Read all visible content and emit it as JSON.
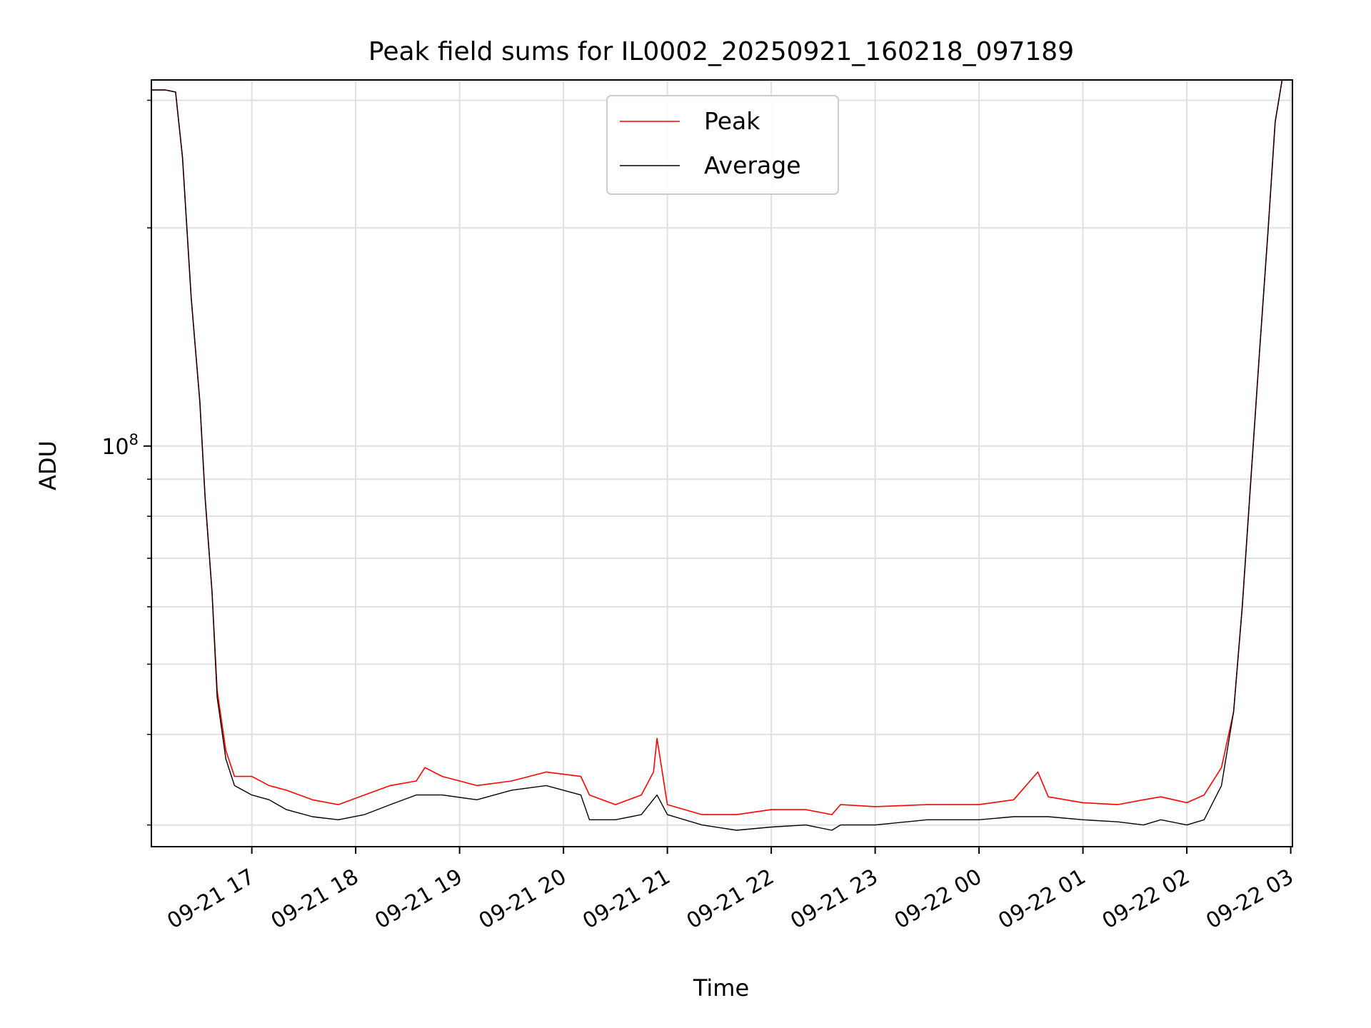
{
  "chart_data": {
    "type": "line",
    "title": "Peak field sums for IL0002_20250921_160218_097189",
    "xlabel": "Time",
    "ylabel": "ADU",
    "yscale": "log",
    "grid": true,
    "legend_position": "top-center",
    "xlim": [
      "2025-09-21 16:02",
      "2025-09-22 03:01"
    ],
    "ylim": [
      28000000.0,
      320000000.0
    ],
    "x_tick_labels": [
      "09-21 17",
      "09-21 18",
      "09-21 19",
      "09-21 20",
      "09-21 21",
      "09-21 22",
      "09-21 23",
      "09-22 00",
      "09-22 01",
      "09-22 02",
      "09-22 03"
    ],
    "x_tick_values": [
      "2025-09-21 17:00",
      "2025-09-21 18:00",
      "2025-09-21 19:00",
      "2025-09-21 20:00",
      "2025-09-21 21:00",
      "2025-09-21 22:00",
      "2025-09-21 23:00",
      "2025-09-22 00:00",
      "2025-09-22 01:00",
      "2025-09-22 02:00",
      "2025-09-22 03:00"
    ],
    "y_major_tick": {
      "value": 100000000.0,
      "label_base": "10",
      "label_exp": "8"
    },
    "y_minor_ticks": [
      30000000.0,
      40000000.0,
      50000000.0,
      60000000.0,
      70000000.0,
      80000000.0,
      90000000.0,
      200000000.0,
      300000000.0
    ],
    "colors": {
      "peak": "#ff0000",
      "average": "#000000",
      "grid": "#e0e0e0"
    },
    "series": [
      {
        "name": "Peak",
        "color": "#ff0000",
        "x": [
          "2025-09-21 16:02",
          "2025-09-21 16:10",
          "2025-09-21 16:16",
          "2025-09-21 16:20",
          "2025-09-21 16:25",
          "2025-09-21 16:30",
          "2025-09-21 16:33",
          "2025-09-21 16:37",
          "2025-09-21 16:40",
          "2025-09-21 16:45",
          "2025-09-21 16:50",
          "2025-09-21 17:00",
          "2025-09-21 17:10",
          "2025-09-21 17:20",
          "2025-09-21 17:35",
          "2025-09-21 17:50",
          "2025-09-21 18:05",
          "2025-09-21 18:20",
          "2025-09-21 18:35",
          "2025-09-21 18:40",
          "2025-09-21 18:50",
          "2025-09-21 19:10",
          "2025-09-21 19:30",
          "2025-09-21 19:50",
          "2025-09-21 20:10",
          "2025-09-21 20:15",
          "2025-09-21 20:30",
          "2025-09-21 20:45",
          "2025-09-21 20:52",
          "2025-09-21 20:54",
          "2025-09-21 21:00",
          "2025-09-21 21:20",
          "2025-09-21 21:40",
          "2025-09-21 22:00",
          "2025-09-21 22:20",
          "2025-09-21 22:35",
          "2025-09-21 22:40",
          "2025-09-21 23:00",
          "2025-09-21 23:30",
          "2025-09-22 00:00",
          "2025-09-22 00:20",
          "2025-09-22 00:34",
          "2025-09-22 00:40",
          "2025-09-22 01:00",
          "2025-09-22 01:20",
          "2025-09-22 01:35",
          "2025-09-22 01:45",
          "2025-09-22 02:00",
          "2025-09-22 02:10",
          "2025-09-22 02:20",
          "2025-09-22 02:27",
          "2025-09-22 02:32",
          "2025-09-22 02:37",
          "2025-09-22 02:42",
          "2025-09-22 02:47",
          "2025-09-22 02:51",
          "2025-09-22 02:55"
        ],
        "y": [
          310000000.0,
          310000000.0,
          308000000.0,
          250000000.0,
          160000000.0,
          115000000.0,
          85000000.0,
          63000000.0,
          46000000.0,
          38000000.0,
          35000000.0,
          35000000.0,
          34000000.0,
          33500000.0,
          32500000.0,
          32000000.0,
          33000000.0,
          34000000.0,
          34500000.0,
          36000000.0,
          35000000.0,
          34000000.0,
          34500000.0,
          35500000.0,
          35000000.0,
          33000000.0,
          32000000.0,
          33000000.0,
          35500000.0,
          39500000.0,
          32000000.0,
          31000000.0,
          31000000.0,
          31500000.0,
          31500000.0,
          31000000.0,
          32000000.0,
          31800000.0,
          32000000.0,
          32000000.0,
          32500000.0,
          35500000.0,
          32800000.0,
          32200000.0,
          32000000.0,
          32500000.0,
          32800000.0,
          32200000.0,
          33000000.0,
          36000000.0,
          43000000.0,
          60000000.0,
          90000000.0,
          135000000.0,
          200000000.0,
          280000000.0,
          320000000.0
        ]
      },
      {
        "name": "Average",
        "color": "#000000",
        "x": [
          "2025-09-21 16:02",
          "2025-09-21 16:10",
          "2025-09-21 16:16",
          "2025-09-21 16:20",
          "2025-09-21 16:25",
          "2025-09-21 16:30",
          "2025-09-21 16:33",
          "2025-09-21 16:37",
          "2025-09-21 16:40",
          "2025-09-21 16:45",
          "2025-09-21 16:50",
          "2025-09-21 17:00",
          "2025-09-21 17:10",
          "2025-09-21 17:20",
          "2025-09-21 17:35",
          "2025-09-21 17:50",
          "2025-09-21 18:05",
          "2025-09-21 18:20",
          "2025-09-21 18:35",
          "2025-09-21 18:50",
          "2025-09-21 19:10",
          "2025-09-21 19:30",
          "2025-09-21 19:50",
          "2025-09-21 20:10",
          "2025-09-21 20:15",
          "2025-09-21 20:30",
          "2025-09-21 20:45",
          "2025-09-21 20:54",
          "2025-09-21 21:00",
          "2025-09-21 21:20",
          "2025-09-21 21:40",
          "2025-09-21 22:00",
          "2025-09-21 22:20",
          "2025-09-21 22:35",
          "2025-09-21 22:40",
          "2025-09-21 23:00",
          "2025-09-21 23:30",
          "2025-09-22 00:00",
          "2025-09-22 00:20",
          "2025-09-22 00:40",
          "2025-09-22 01:00",
          "2025-09-22 01:20",
          "2025-09-22 01:35",
          "2025-09-22 01:45",
          "2025-09-22 02:00",
          "2025-09-22 02:10",
          "2025-09-22 02:20",
          "2025-09-22 02:27",
          "2025-09-22 02:32",
          "2025-09-22 02:37",
          "2025-09-22 02:42",
          "2025-09-22 02:47",
          "2025-09-22 02:51",
          "2025-09-22 02:55"
        ],
        "y": [
          310000000.0,
          310000000.0,
          308000000.0,
          250000000.0,
          160000000.0,
          115000000.0,
          85000000.0,
          63000000.0,
          45000000.0,
          37000000.0,
          34000000.0,
          33000000.0,
          32500000.0,
          31500000.0,
          30800000.0,
          30500000.0,
          31000000.0,
          32000000.0,
          33000000.0,
          33000000.0,
          32500000.0,
          33500000.0,
          34000000.0,
          33000000.0,
          30500000.0,
          30500000.0,
          31000000.0,
          33000000.0,
          31000000.0,
          30000000.0,
          29500000.0,
          29800000.0,
          30000000.0,
          29500000.0,
          30000000.0,
          30000000.0,
          30500000.0,
          30500000.0,
          30800000.0,
          30800000.0,
          30500000.0,
          30300000.0,
          30000000.0,
          30500000.0,
          30000000.0,
          30500000.0,
          34000000.0,
          43000000.0,
          60000000.0,
          90000000.0,
          135000000.0,
          200000000.0,
          280000000.0,
          320000000.0
        ]
      }
    ]
  }
}
